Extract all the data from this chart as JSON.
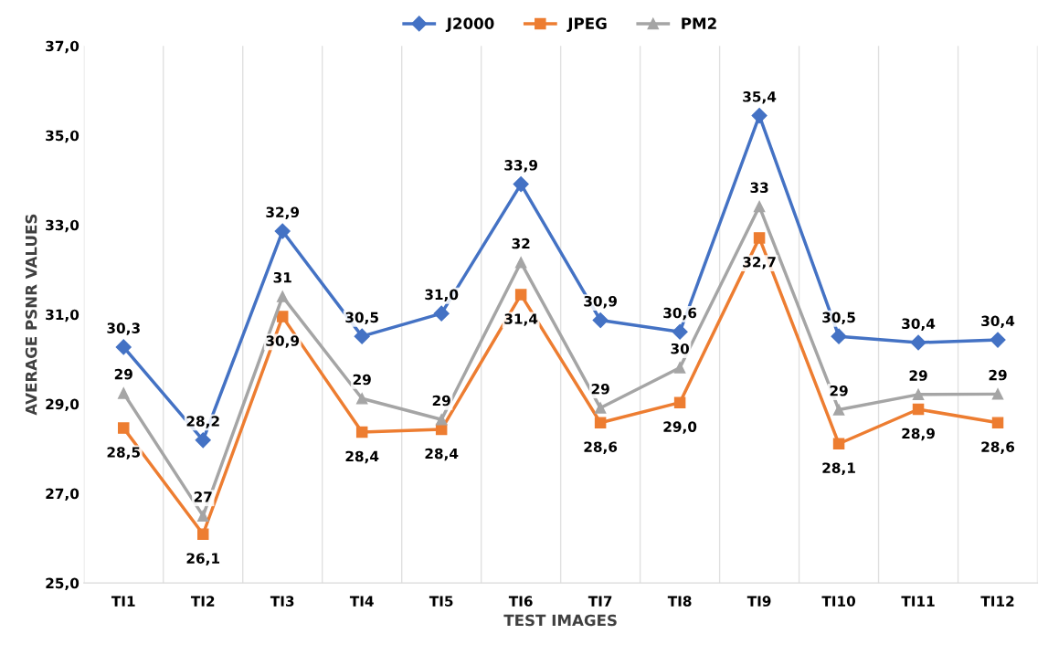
{
  "chart_data": {
    "type": "line",
    "xlabel": "TEST IMAGES",
    "ylabel": "AVERAGE PSNR VALUES",
    "categories": [
      "TI1",
      "TI2",
      "TI3",
      "TI4",
      "TI5",
      "TI6",
      "TI7",
      "TI8",
      "TI9",
      "TI10",
      "TI11",
      "TI12"
    ],
    "series": [
      {
        "name": "J2000",
        "color": "#4472c4",
        "marker": "diamond",
        "values": [
          30.27,
          28.19,
          32.86,
          30.51,
          31.02,
          33.91,
          30.87,
          30.61,
          35.44,
          30.51,
          30.37,
          30.43
        ],
        "value_labels": [
          "30,3",
          "28,2",
          "32,9",
          "30,5",
          "31,0",
          "33,9",
          "30,9",
          "30,6",
          "35,4",
          "30,5",
          "30,4",
          "30,4"
        ]
      },
      {
        "name": "JPEG",
        "color": "#ed7d31",
        "marker": "square",
        "values": [
          28.46,
          26.09,
          30.95,
          28.37,
          28.43,
          31.44,
          28.58,
          29.03,
          32.71,
          28.11,
          28.88,
          28.58
        ],
        "value_labels": [
          "28,5",
          "26,1",
          "30,9",
          "28,4",
          "28,4",
          "31,4",
          "28,6",
          "29,0",
          "32,7",
          "28,1",
          "28,9",
          "28,6"
        ]
      },
      {
        "name": "PM2",
        "color": "#a5a5a5",
        "marker": "triangle",
        "values": [
          29.24,
          26.5,
          31.4,
          29.12,
          28.65,
          32.16,
          28.91,
          29.81,
          33.41,
          28.87,
          29.21,
          29.22
        ],
        "value_labels": [
          "29",
          "27",
          "31",
          "29",
          "29",
          "32",
          "29",
          "30",
          "33",
          "29",
          "29",
          "29"
        ]
      }
    ],
    "ylim": [
      25,
      37
    ],
    "yticks": [
      {
        "value": 25,
        "label": "25,0"
      },
      {
        "value": 27,
        "label": "27,0"
      },
      {
        "value": 29,
        "label": "29,0"
      },
      {
        "value": 31,
        "label": "31,0"
      },
      {
        "value": 33,
        "label": "33,0"
      },
      {
        "value": 35,
        "label": "35,0"
      },
      {
        "value": 37,
        "label": "37,0"
      }
    ],
    "grid": "x",
    "legend": "top",
    "line_style": "solid"
  }
}
